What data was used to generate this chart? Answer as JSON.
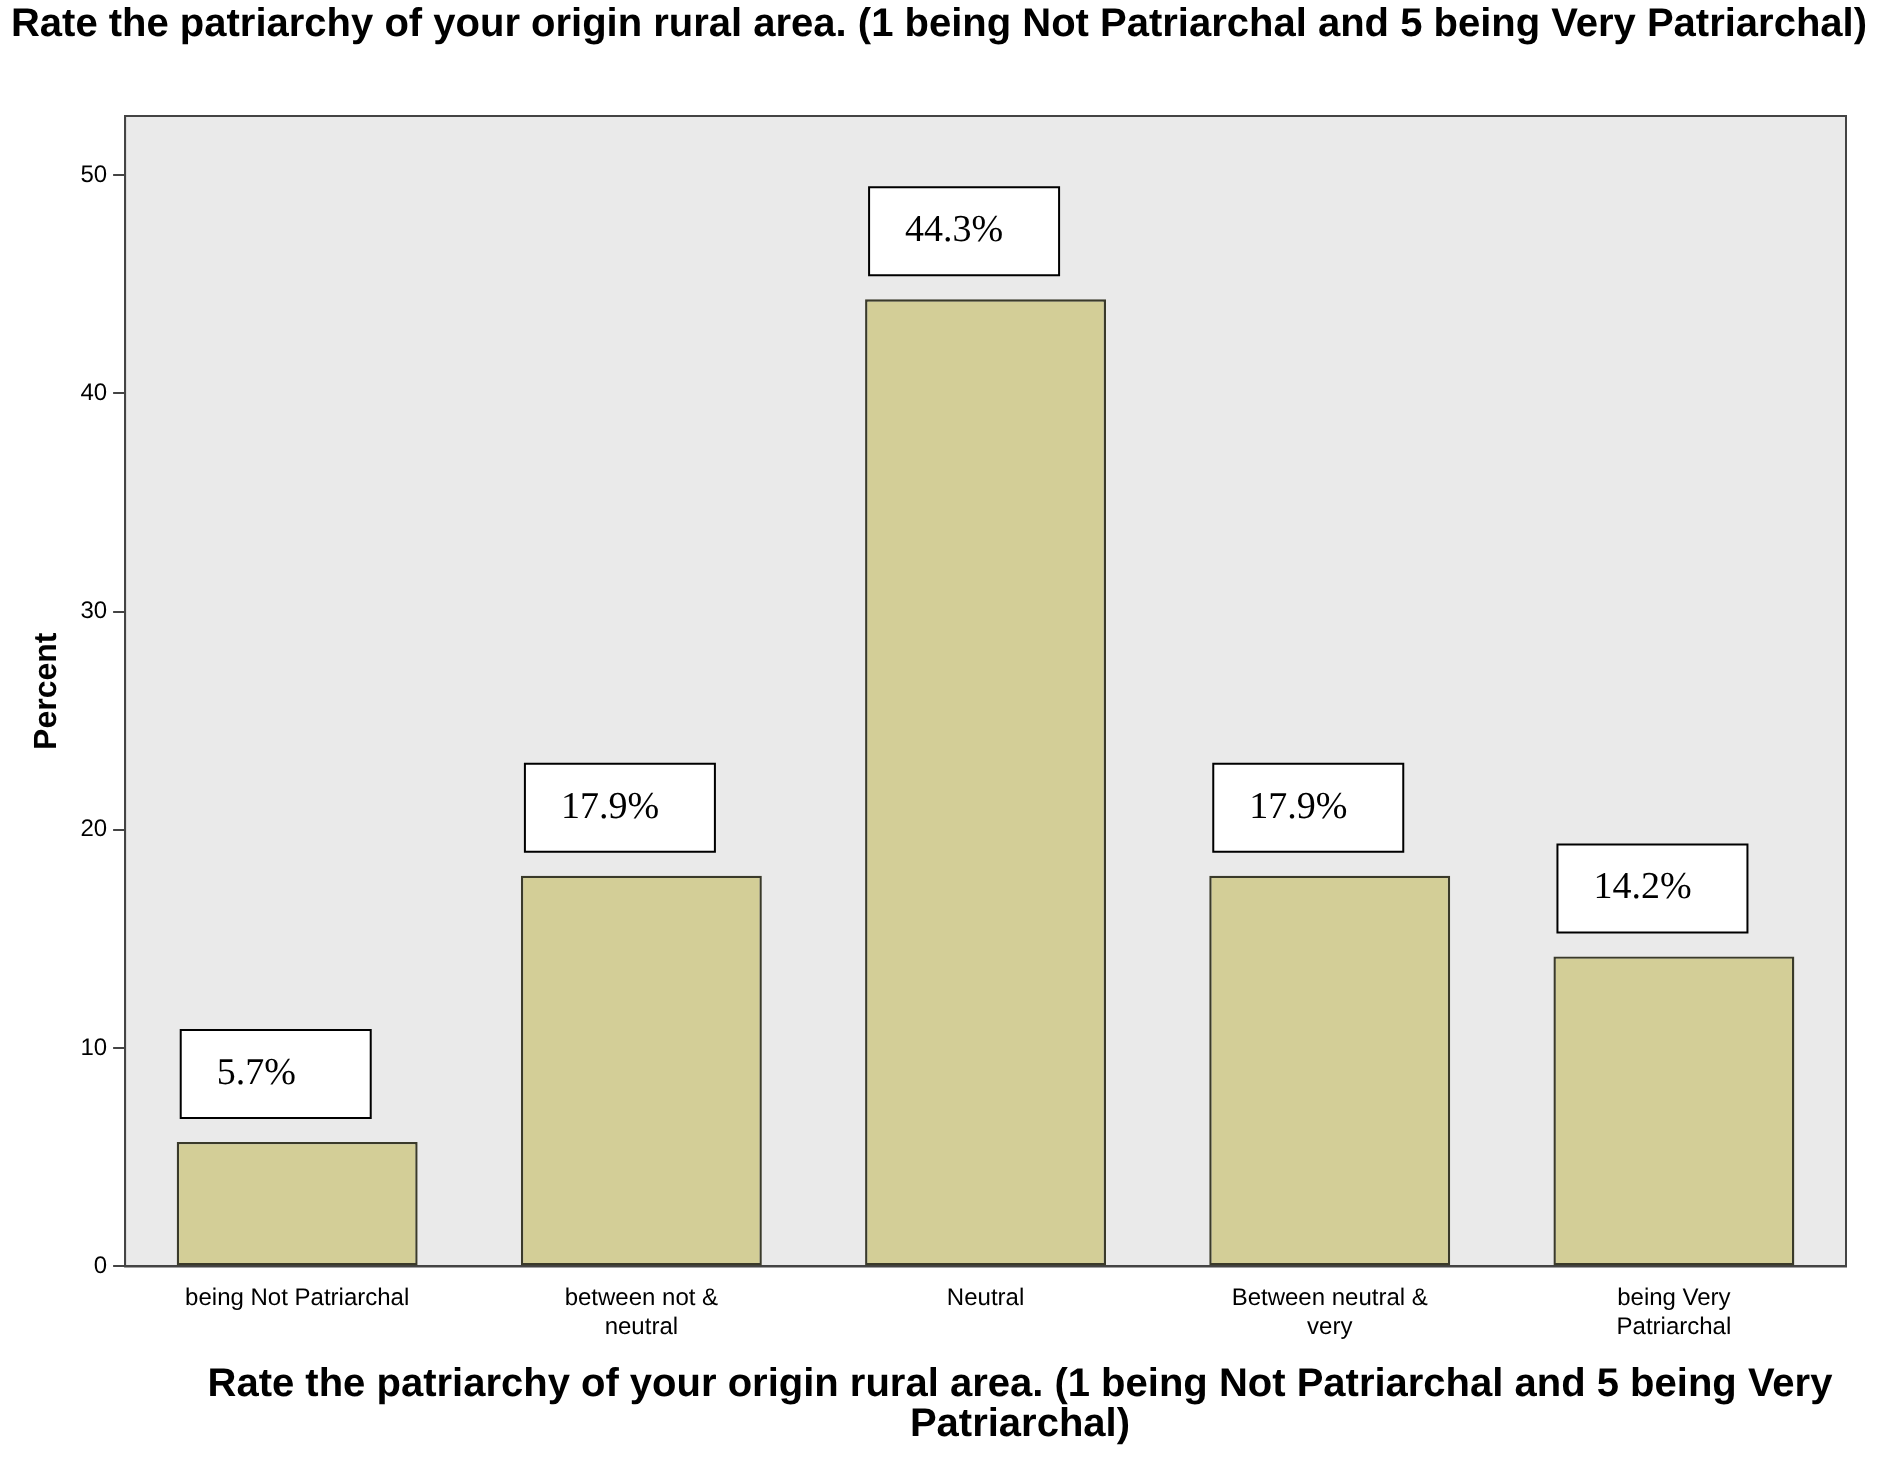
{
  "chart_data": {
    "type": "bar",
    "title": "Rate the patriarchy of your origin rural area. (1 being Not Patriarchal and 5 being Very Patriarchal)",
    "xlabel": "Rate the patriarchy of your origin rural area. (1 being Not Patriarchal and 5 being Very Patriarchal)",
    "ylabel": "Percent",
    "categories": [
      "being Not Patriarchal",
      "between not & neutral",
      "Neutral",
      "Between neutral & very",
      "being Very Patriarchal"
    ],
    "values": [
      5.7,
      17.9,
      44.3,
      17.9,
      14.2
    ],
    "color": "#d3ce97",
    "value_labels": [
      "5.7%",
      "17.9%",
      "44.3%",
      "17.9%",
      "14.2%"
    ],
    "ylim": [
      0,
      52.7
    ],
    "yticks": [
      0,
      10,
      20,
      30,
      40,
      50
    ],
    "grid": false,
    "legend": false
  }
}
